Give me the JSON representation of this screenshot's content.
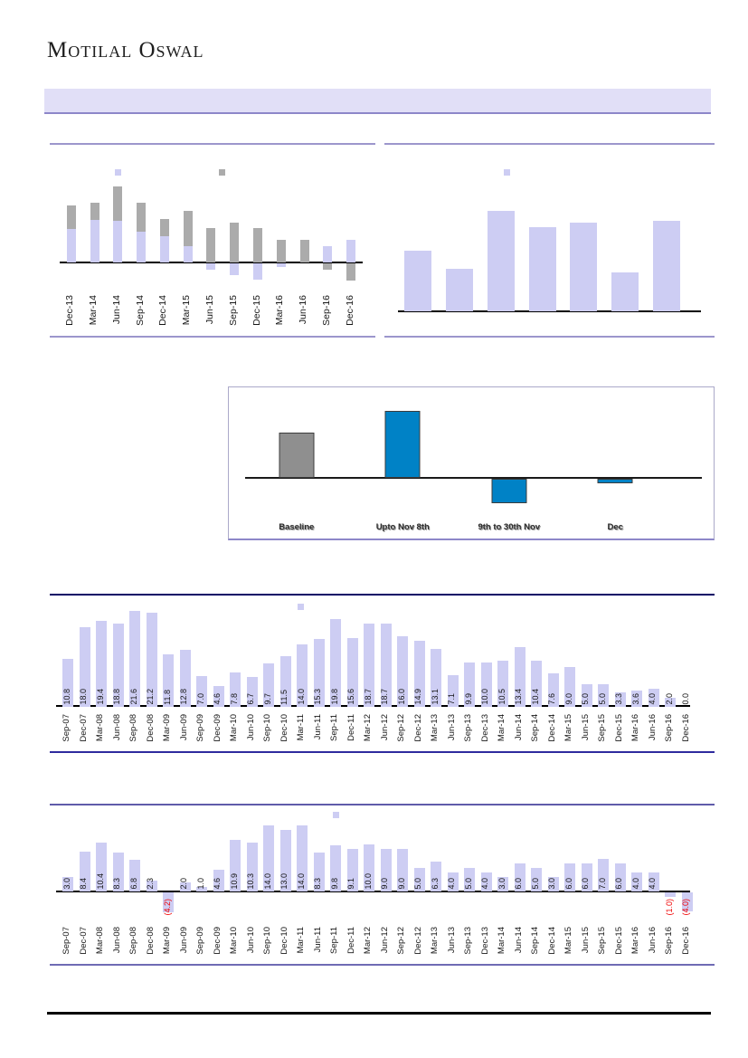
{
  "brand": {
    "logo_text": "Motilal Oswal"
  },
  "header": {
    "band_text": ""
  },
  "colors": {
    "lavender_bar": "#CDCDF3",
    "gray_bar": "#ABABAB",
    "blue_bar": "#0082C6",
    "band_bg": "#E1DFF7",
    "band_border": "#8D87C9",
    "purple_rule": "#9C96CC",
    "navy_rule": "#0A0866",
    "negative_label": "#FF0000"
  },
  "chart_data": [
    {
      "id": "top-left-quarterly",
      "type": "bar",
      "title": "",
      "xlabel": "",
      "ylabel": "",
      "y_axis_labels_visible": false,
      "values_unit": "estimated-relative (no axis labels visible)",
      "categories": [
        "Dec-13",
        "Mar-14",
        "Jun-14",
        "Sep-14",
        "Dec-14",
        "Mar-15",
        "Jun-15",
        "Sep-15",
        "Dec-15",
        "Mar-16",
        "Jun-16",
        "Sep-16",
        "Dec-16"
      ],
      "series": [
        {
          "name": "gray-series",
          "color": "#ABABAB",
          "values": [
            63,
            66,
            84,
            66,
            48,
            57,
            38,
            44,
            38,
            25,
            25,
            -7,
            -19
          ]
        },
        {
          "name": "lavender-series",
          "color": "#CDCDF3",
          "values": [
            37,
            47,
            46,
            34,
            29,
            18,
            -7,
            -13,
            -18,
            -4,
            0,
            18,
            25
          ]
        }
      ]
    },
    {
      "id": "top-right",
      "type": "bar",
      "title": "",
      "xlabel": "",
      "ylabel": "",
      "y_axis_labels_visible": false,
      "x_axis_labels_visible": false,
      "values_unit": "estimated-relative (no axis labels visible)",
      "categories": [
        "",
        "",
        "",
        "",
        "",
        "",
        ""
      ],
      "series": [
        {
          "name": "lavender-series",
          "color": "#CDCDF3",
          "values": [
            67,
            47,
            111,
            93,
            98,
            43,
            100
          ]
        }
      ]
    },
    {
      "id": "note-ban-periods",
      "type": "bar",
      "title": "",
      "xlabel": "",
      "ylabel": "",
      "y_axis_labels_visible": false,
      "values_unit": "estimated-relative (no axis labels visible)",
      "categories": [
        "Baseline",
        "Upto Nov 8th",
        "9th to 30th Nov",
        "Dec"
      ],
      "point_colors": [
        "#8F8F8F",
        "#0082C6",
        "#0082C6",
        "#0082C6"
      ],
      "bar_border": "#3C3C3C",
      "series": [
        {
          "name": "period-series",
          "color": "#0082C6",
          "values": [
            50,
            74,
            -27,
            -5
          ]
        }
      ]
    },
    {
      "id": "quarterly-series-upper",
      "type": "bar",
      "title": "",
      "xlabel": "",
      "ylabel": "",
      "values_unit": "percent (data labels shown on bars)",
      "categories": [
        "Sep-07",
        "Dec-07",
        "Mar-08",
        "Jun-08",
        "Sep-08",
        "Dec-08",
        "Mar-09",
        "Jun-09",
        "Sep-09",
        "Dec-09",
        "Mar-10",
        "Jun-10",
        "Sep-10",
        "Dec-10",
        "Mar-11",
        "Jun-11",
        "Sep-11",
        "Dec-11",
        "Mar-12",
        "Jun-12",
        "Sep-12",
        "Dec-12",
        "Mar-13",
        "Jun-13",
        "Sep-13",
        "Dec-13",
        "Mar-14",
        "Jun-14",
        "Sep-14",
        "Dec-14",
        "Mar-15",
        "Jun-15",
        "Sep-15",
        "Dec-15",
        "Mar-16",
        "Jun-16",
        "Sep-16",
        "Dec-16"
      ],
      "value_labels": [
        "10.8",
        "18.0",
        "19.4",
        "18.8",
        "21.6",
        "21.2",
        "11.8",
        "12.8",
        "7.0",
        "4.6",
        "7.8",
        "6.7",
        "9.7",
        "11.5",
        "14.0",
        "15.3",
        "19.8",
        "15.6",
        "18.7",
        "18.7",
        "16.0",
        "14.9",
        "13.1",
        "7.1",
        "9.9",
        "10.0",
        "10.5",
        "13.4",
        "10.4",
        "7.6",
        "9.0",
        "5.0",
        "5.0",
        "3.3",
        "3.6",
        "4.0",
        "2.0",
        "0.0"
      ],
      "series": [
        {
          "name": "lavender-series",
          "color": "#CDCDF3",
          "values": [
            10.8,
            18.0,
            19.4,
            18.8,
            21.6,
            21.2,
            11.8,
            12.8,
            7.0,
            4.6,
            7.8,
            6.7,
            9.7,
            11.5,
            14.0,
            15.3,
            19.8,
            15.6,
            18.7,
            18.7,
            16.0,
            14.9,
            13.1,
            7.1,
            9.9,
            10.0,
            10.5,
            13.4,
            10.4,
            7.6,
            9.0,
            5.0,
            5.0,
            3.3,
            3.6,
            4.0,
            2.0,
            0.0
          ]
        }
      ]
    },
    {
      "id": "quarterly-series-lower",
      "type": "bar",
      "title": "",
      "xlabel": "",
      "ylabel": "",
      "values_unit": "percent (data labels shown on bars, negatives in red parentheses)",
      "negative_format": "parentheses-red",
      "categories": [
        "Sep-07",
        "Dec-07",
        "Mar-08",
        "Jun-08",
        "Sep-08",
        "Dec-08",
        "Mar-09",
        "Jun-09",
        "Sep-09",
        "Dec-09",
        "Mar-10",
        "Jun-10",
        "Sep-10",
        "Dec-10",
        "Mar-11",
        "Jun-11",
        "Sep-11",
        "Dec-11",
        "Mar-12",
        "Jun-12",
        "Sep-12",
        "Dec-12",
        "Mar-13",
        "Jun-13",
        "Sep-13",
        "Dec-13",
        "Mar-14",
        "Jun-14",
        "Sep-14",
        "Dec-14",
        "Mar-15",
        "Jun-15",
        "Sep-15",
        "Dec-15",
        "Mar-16",
        "Jun-16",
        "Sep-16",
        "Dec-16"
      ],
      "value_labels": [
        "3.0",
        "8.4",
        "10.4",
        "8.3",
        "6.8",
        "2.3",
        "(4.2)",
        "2.0",
        "1.0",
        "4.6",
        "10.9",
        "10.3",
        "14.0",
        "13.0",
        "14.0",
        "8.3",
        "9.8",
        "9.1",
        "10.0",
        "9.0",
        "9.0",
        "5.0",
        "6.3",
        "4.0",
        "5.0",
        "4.0",
        "3.0",
        "6.0",
        "5.0",
        "3.0",
        "6.0",
        "6.0",
        "7.0",
        "6.0",
        "4.0",
        "4.0",
        "(1.0)",
        "(4.0)"
      ],
      "series": [
        {
          "name": "lavender-series",
          "color": "#CDCDF3",
          "values": [
            3.0,
            8.4,
            10.4,
            8.3,
            6.8,
            2.3,
            -4.2,
            2.0,
            1.0,
            4.6,
            10.9,
            10.3,
            14.0,
            13.0,
            14.0,
            8.3,
            9.8,
            9.1,
            10.0,
            9.0,
            9.0,
            5.0,
            6.3,
            4.0,
            5.0,
            4.0,
            3.0,
            6.0,
            5.0,
            3.0,
            6.0,
            6.0,
            7.0,
            6.0,
            4.0,
            4.0,
            -1.0,
            -4.0
          ]
        }
      ]
    }
  ]
}
